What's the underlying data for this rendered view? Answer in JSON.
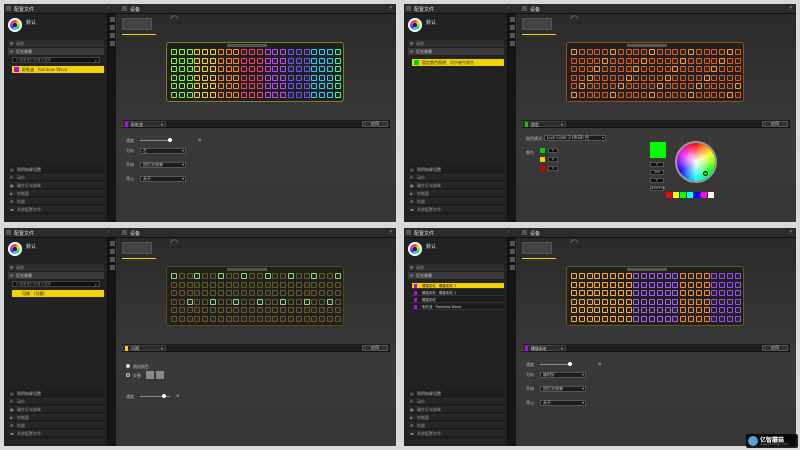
{
  "panels": [
    {
      "topbar": {
        "profiles_title": "配置文件",
        "device_title": "设备",
        "close": "✕"
      },
      "profile_name": "默认",
      "sections": {
        "actions": "动作",
        "lighting": "灯光效果",
        "performance": "性能"
      },
      "search_placeholder": "在我最爱的效果中搜寻",
      "lighting_items": [
        {
          "label": "彩虹波",
          "sub": "Rainbow Wave",
          "color": "#c000ff",
          "selected": true
        }
      ],
      "bottom_header": "照明效果设置",
      "bottom_items": [
        "动作",
        "硬件灯光效果",
        "控制盘",
        "性能",
        "系统配置文件"
      ],
      "effect_label": "彩虹波",
      "effect_swatch": "#c000ff",
      "apply_label": "应用",
      "controls": [
        {
          "label": "速度",
          "type": "slider",
          "value": ""
        },
        {
          "label": "方向",
          "type": "select",
          "value": "左"
        },
        {
          "label": "开始",
          "type": "select",
          "value": "由灯光效果"
        },
        {
          "label": "停止",
          "type": "select",
          "value": "永不"
        }
      ]
    },
    {
      "topbar": {
        "profiles_title": "配置文件",
        "device_title": "设备",
        "close": "✕"
      },
      "profile_name": "默认",
      "sections": {
        "actions": "动作",
        "lighting": "灯光效果",
        "performance": "性能"
      },
      "search_placeholder": "",
      "lighting_items": [
        {
          "label": "固定颜色照明",
          "sub": "同步硬件颜色",
          "color": "#00d000",
          "selected": true
        }
      ],
      "bottom_header": "照明效果设置",
      "bottom_items": [
        "动作",
        "硬件灯光效果",
        "控制盘",
        "性能",
        "系统配置文件"
      ],
      "effect_label": "固定",
      "effect_swatch": "#00d000",
      "apply_label": "应用",
      "color_mode_label": "颜色模式",
      "color_mode_value": "Live Color 3 (RGB) 色",
      "colors_label": "颜色",
      "color_rows": [
        {
          "color": "#00d000",
          "value": "0"
        },
        {
          "color": "#f2d200",
          "value": "0"
        },
        {
          "color": "#cc0000",
          "value": "0"
        }
      ],
      "picker": {
        "preview": "#00ff00",
        "r": "0",
        "g": "255",
        "b": "0",
        "hex": "#00FF00",
        "presets": [
          "#ff0000",
          "#ffff00",
          "#00ff00",
          "#00ffff",
          "#0000ff",
          "#ff00ff",
          "#ffffff"
        ]
      }
    },
    {
      "topbar": {
        "profiles_title": "配置文件",
        "device_title": "设备",
        "close": "✕"
      },
      "profile_name": "默认",
      "sections": {
        "actions": "动作",
        "lighting": "灯光效果",
        "performance": "性能"
      },
      "search_placeholder": "在我最爱的效果中搜寻",
      "lighting_items": [
        {
          "label": "可视 （可视）",
          "sub": "",
          "color": "#f2d200",
          "selected": true
        }
      ],
      "bottom_header": "照明效果设置",
      "bottom_items": [
        "动作",
        "硬件灯光效果",
        "控制盘",
        "性能",
        "系统配置文件"
      ],
      "effect_label": "可视",
      "effect_swatch": "#f2d200",
      "apply_label": "应用",
      "radios": [
        {
          "label": "随机颜色",
          "on": true
        },
        {
          "label": "交替",
          "on": false
        }
      ],
      "speed_label": "速度"
    },
    {
      "topbar": {
        "profiles_title": "配置文件",
        "device_title": "设备",
        "close": "✕"
      },
      "profile_name": "默认",
      "sections": {
        "actions": "动作",
        "lighting": "灯光效果",
        "performance": "性能"
      },
      "search_placeholder": "",
      "lighting_items": [
        {
          "label": "螺旋彩虹",
          "sub": "螺旋彩虹 2",
          "color": "#c000ff",
          "selected": true
        },
        {
          "label": "螺旋彩虹",
          "sub": "螺旋彩虹 1",
          "color": "#c000ff",
          "selected": false
        },
        {
          "label": "螺旋彩虹",
          "sub": "",
          "color": "#c000ff",
          "selected": false
        },
        {
          "label": "彩虹波",
          "sub": "Rainbow Wave",
          "color": "#c000ff",
          "selected": false
        }
      ],
      "bottom_header": "照明效果设置",
      "bottom_items": [
        "动作",
        "硬件灯光效果",
        "控制盘",
        "性能",
        "系统配置文件"
      ],
      "effect_label": "螺旋彩虹",
      "effect_swatch": "#c000ff",
      "apply_label": "应用",
      "controls": [
        {
          "label": "速度",
          "type": "slider",
          "value": ""
        },
        {
          "label": "方向",
          "type": "select",
          "value": "顺时针"
        },
        {
          "label": "开始",
          "type": "select",
          "value": "由灯光效果"
        },
        {
          "label": "停止",
          "type": "select",
          "value": "永不"
        }
      ]
    }
  ],
  "keyboards": [
    {
      "theme": "rainbow",
      "frame_color": "#8a7a20"
    },
    {
      "theme": "orange",
      "frame_color": "#a04a10"
    },
    {
      "theme": "dim",
      "frame_color": "#5a4a10"
    },
    {
      "theme": "orange-purple",
      "frame_color": "#6a5a10"
    }
  ],
  "watermark": {
    "title": "亿智蘑菇",
    "url": "www.yimoogu.com"
  },
  "icons": {
    "close": "close-icon",
    "search": "search-icon",
    "profile_logo": "corsair-logo-icon",
    "device": "keyboard-icon",
    "headset": "headset-icon"
  }
}
